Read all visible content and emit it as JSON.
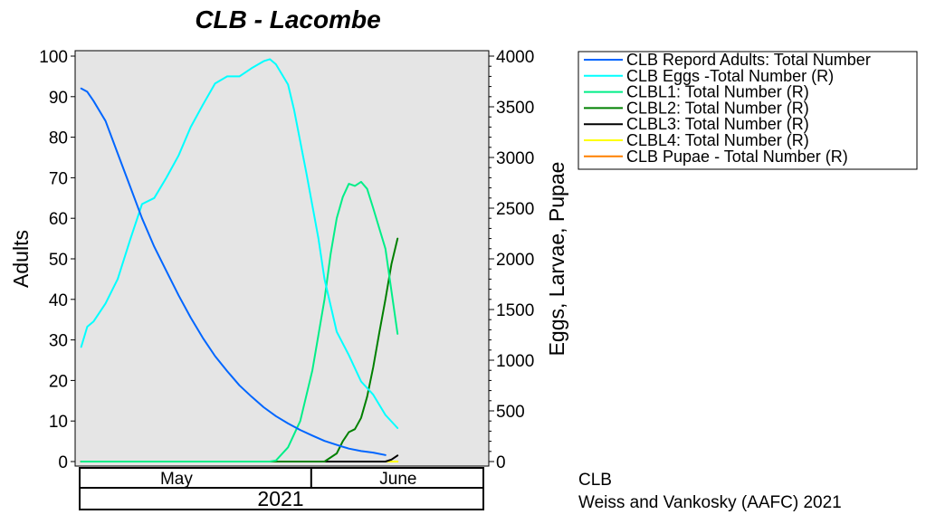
{
  "chart_data": {
    "type": "line",
    "title": "CLB - Lacombe",
    "ylabel": "Adults",
    "y2label": "Eggs, Larvae, Pupae",
    "ylim": [
      0,
      100
    ],
    "y2lim": [
      0,
      4000
    ],
    "yticks": [
      "0",
      "10",
      "20",
      "30",
      "40",
      "50",
      "60",
      "70",
      "80",
      "90",
      "100"
    ],
    "y2ticks": [
      "0",
      "500",
      "1000",
      "1500",
      "2000",
      "2500",
      "3000",
      "3500",
      "4000"
    ],
    "x_range": [
      "2021-04-22",
      "2021-06-29"
    ],
    "months": [
      {
        "label": "May",
        "start": "2021-04-22",
        "end": "2021-05-31"
      },
      {
        "label": "June",
        "start": "2021-05-31",
        "end": "2021-06-29"
      }
    ],
    "year_label": "2021",
    "plot_background": "#e5e5e5",
    "legend_position": "right-top",
    "series": [
      {
        "name": "CLB  Repord Adults: Total Number",
        "axis": "left",
        "color": "#0066ff",
        "points": [
          [
            "2021-04-23",
            92.0
          ],
          [
            "2021-04-24",
            91.2
          ],
          [
            "2021-04-25",
            89.0
          ],
          [
            "2021-04-27",
            84.0
          ],
          [
            "2021-04-29",
            76.0
          ],
          [
            "2021-05-01",
            68.0
          ],
          [
            "2021-05-03",
            60.0
          ],
          [
            "2021-05-05",
            53.0
          ],
          [
            "2021-05-07",
            47.0
          ],
          [
            "2021-05-09",
            41.0
          ],
          [
            "2021-05-11",
            35.5
          ],
          [
            "2021-05-13",
            30.5
          ],
          [
            "2021-05-15",
            26.0
          ],
          [
            "2021-05-17",
            22.3
          ],
          [
            "2021-05-19",
            18.8
          ],
          [
            "2021-05-21",
            16.0
          ],
          [
            "2021-05-23",
            13.4
          ],
          [
            "2021-05-25",
            11.2
          ],
          [
            "2021-05-27",
            9.4
          ],
          [
            "2021-05-29",
            7.8
          ],
          [
            "2021-05-31",
            6.4
          ],
          [
            "2021-06-02",
            5.1
          ],
          [
            "2021-06-04",
            4.1
          ],
          [
            "2021-06-06",
            3.2
          ],
          [
            "2021-06-08",
            2.6
          ],
          [
            "2021-06-10",
            2.2
          ],
          [
            "2021-06-12",
            1.6
          ]
        ]
      },
      {
        "name": "CLB Eggs -Total Number (R)",
        "axis": "right",
        "color": "#00ffff",
        "points": [
          [
            "2021-04-23",
            1130
          ],
          [
            "2021-04-24",
            1330
          ],
          [
            "2021-04-25",
            1380
          ],
          [
            "2021-04-27",
            1560
          ],
          [
            "2021-04-29",
            1800
          ],
          [
            "2021-05-01",
            2180
          ],
          [
            "2021-05-03",
            2540
          ],
          [
            "2021-05-05",
            2600
          ],
          [
            "2021-05-07",
            2800
          ],
          [
            "2021-05-09",
            3020
          ],
          [
            "2021-05-11",
            3300
          ],
          [
            "2021-05-13",
            3520
          ],
          [
            "2021-05-15",
            3730
          ],
          [
            "2021-05-17",
            3800
          ],
          [
            "2021-05-19",
            3800
          ],
          [
            "2021-05-21",
            3880
          ],
          [
            "2021-05-23",
            3950
          ],
          [
            "2021-05-24",
            3970
          ],
          [
            "2021-05-25",
            3920
          ],
          [
            "2021-05-27",
            3720
          ],
          [
            "2021-05-28",
            3470
          ],
          [
            "2021-05-30",
            2850
          ],
          [
            "2021-06-01",
            2200
          ],
          [
            "2021-06-02",
            1800
          ],
          [
            "2021-06-04",
            1280
          ],
          [
            "2021-06-06",
            1050
          ],
          [
            "2021-06-08",
            790
          ],
          [
            "2021-06-10",
            660
          ],
          [
            "2021-06-12",
            460
          ],
          [
            "2021-06-14",
            330
          ]
        ]
      },
      {
        "name": "CLBL1: Total Number (R)",
        "axis": "right",
        "color": "#00ee88",
        "points": [
          [
            "2021-04-23",
            0
          ],
          [
            "2021-05-24",
            0
          ],
          [
            "2021-05-25",
            10
          ],
          [
            "2021-05-27",
            140
          ],
          [
            "2021-05-29",
            400
          ],
          [
            "2021-05-31",
            900
          ],
          [
            "2021-06-02",
            1600
          ],
          [
            "2021-06-03",
            2050
          ],
          [
            "2021-06-04",
            2400
          ],
          [
            "2021-06-05",
            2610
          ],
          [
            "2021-06-06",
            2740
          ],
          [
            "2021-06-07",
            2720
          ],
          [
            "2021-06-08",
            2760
          ],
          [
            "2021-06-09",
            2690
          ],
          [
            "2021-06-10",
            2500
          ],
          [
            "2021-06-12",
            2100
          ],
          [
            "2021-06-14",
            1260
          ]
        ]
      },
      {
        "name": "CLBL2: Total Number (R)",
        "axis": "right",
        "color": "#008000",
        "points": [
          [
            "2021-04-23",
            0
          ],
          [
            "2021-06-02",
            0
          ],
          [
            "2021-06-04",
            80
          ],
          [
            "2021-06-05",
            200
          ],
          [
            "2021-06-06",
            290
          ],
          [
            "2021-06-07",
            320
          ],
          [
            "2021-06-08",
            430
          ],
          [
            "2021-06-09",
            640
          ],
          [
            "2021-06-10",
            930
          ],
          [
            "2021-06-11",
            1270
          ],
          [
            "2021-06-12",
            1600
          ],
          [
            "2021-06-13",
            1950
          ],
          [
            "2021-06-14",
            2200
          ]
        ]
      },
      {
        "name": "CLBL3: Total Number (R)",
        "axis": "right",
        "color": "#000000",
        "points": [
          [
            "2021-04-23",
            0
          ],
          [
            "2021-06-12",
            0
          ],
          [
            "2021-06-13",
            20
          ],
          [
            "2021-06-14",
            60
          ]
        ]
      },
      {
        "name": "CLBL4: Total Number (R)",
        "axis": "right",
        "color": "#ffff00",
        "points": [
          [
            "2021-04-23",
            0
          ],
          [
            "2021-06-14",
            0
          ]
        ]
      },
      {
        "name": "CLB Pupae - Total Number (R)",
        "axis": "right",
        "color": "#ff8000",
        "points": [
          [
            "2021-04-23",
            0
          ],
          [
            "2021-06-14",
            0
          ]
        ]
      }
    ]
  },
  "credits": {
    "line1": "CLB",
    "line2": "Weiss and Vankosky  (AAFC) 2021"
  }
}
